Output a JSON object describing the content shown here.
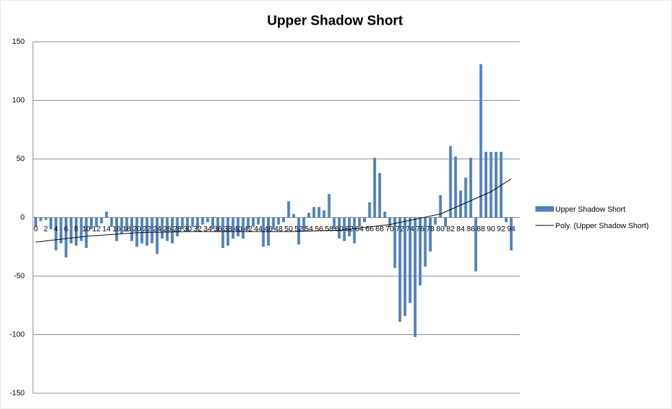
{
  "chart_data": {
    "type": "bar",
    "title": "Upper Shadow Short",
    "categories": [
      "0",
      null,
      "2",
      null,
      "4",
      null,
      "6",
      null,
      "8",
      null,
      "10",
      null,
      "12",
      null,
      "14",
      null,
      "16",
      null,
      "18",
      null,
      "20",
      null,
      "22",
      null,
      "24",
      null,
      "26",
      null,
      "28",
      null,
      "30",
      null,
      "32",
      null,
      "34",
      null,
      "36",
      null,
      "38",
      null,
      "40",
      null,
      "42",
      null,
      "44",
      null,
      "46",
      null,
      "48",
      null,
      "50",
      null,
      "52",
      null,
      "54",
      null,
      "56",
      null,
      "58",
      null,
      "60",
      null,
      "62",
      null,
      "64",
      null,
      "66",
      null,
      "68",
      null,
      "70",
      null,
      "72",
      null,
      "74",
      null,
      "76",
      null,
      "78",
      null,
      "80",
      null,
      "82",
      null,
      "84",
      null,
      "86",
      null,
      "88",
      null,
      "90",
      null,
      "92",
      null,
      "94"
    ],
    "series": [
      {
        "name": "Upper Shadow Short",
        "color": "#4f81bd",
        "values": [
          -8,
          -3,
          -2,
          -10,
          -28,
          -22,
          -34,
          -22,
          -24,
          -20,
          -26,
          -10,
          -8,
          -5,
          5,
          -8,
          -20,
          -14,
          -12,
          -20,
          -25,
          -22,
          -24,
          -22,
          -31,
          -18,
          -20,
          -22,
          -16,
          -10,
          -12,
          -8,
          -10,
          -6,
          -4,
          -10,
          -12,
          -26,
          -24,
          -18,
          -16,
          -18,
          -10,
          -8,
          -6,
          -25,
          -24,
          -10,
          -6,
          -4,
          14,
          3,
          -23,
          -12,
          4,
          9,
          9,
          6,
          20,
          -10,
          -18,
          -20,
          -16,
          -22,
          -8,
          -4,
          13,
          51,
          38,
          5,
          -8,
          -43,
          -89,
          -84,
          -73,
          -102,
          -58,
          -42,
          -29,
          -6,
          19,
          -8,
          61,
          52,
          23,
          34,
          51,
          -46,
          131,
          56,
          56,
          56,
          56,
          -4,
          -28
        ]
      }
    ],
    "trendline": {
      "name": "Poly. (Upper Shadow Short)",
      "color": "#000000",
      "x": [
        0,
        10,
        20,
        30,
        40,
        50,
        60,
        70,
        80,
        90,
        94
      ],
      "values": [
        -21,
        -16,
        -13,
        -12,
        -12,
        -12,
        -11,
        -6,
        3,
        22,
        33
      ]
    },
    "ylim": [
      -150,
      150
    ],
    "yticks": [
      -150,
      -100,
      -50,
      0,
      50,
      100,
      150
    ],
    "grid": true,
    "legend": "right"
  }
}
